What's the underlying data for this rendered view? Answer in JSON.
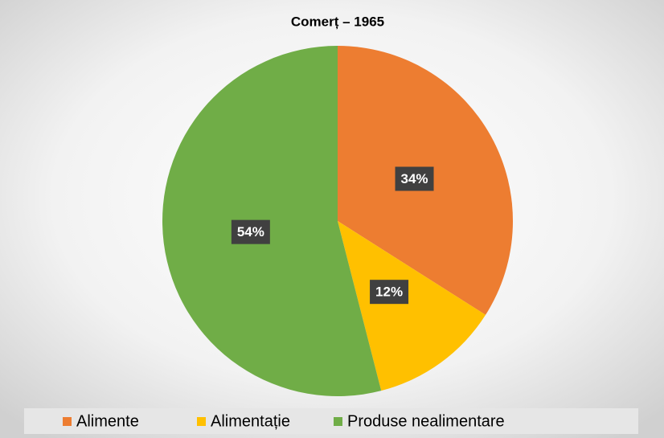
{
  "chart_data": {
    "type": "pie",
    "title": "Comerț – 1965",
    "categories": [
      "Alimente",
      "Alimentație",
      "Produse nealimentare"
    ],
    "values": [
      34,
      12,
      54
    ],
    "value_labels": [
      "34%",
      "12%",
      "54%"
    ],
    "colors": [
      "#ED7D31",
      "#FFC000",
      "#70AD47"
    ],
    "legend": "bottom"
  }
}
